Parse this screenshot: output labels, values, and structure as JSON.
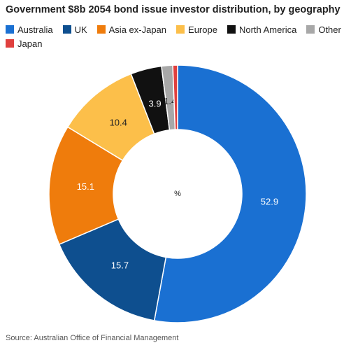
{
  "chart_data": {
    "type": "donut",
    "title": "Government $8b 2054 bond issue investor distribution, by geography",
    "categories": [
      "Australia",
      "UK",
      "Asia ex-Japan",
      "Europe",
      "North America",
      "Other",
      "Japan"
    ],
    "values": [
      52.9,
      15.7,
      15.1,
      10.4,
      3.9,
      1.4,
      0.6
    ],
    "colors": [
      "#1a70d2",
      "#0e4f8f",
      "#ef7c0c",
      "#fcbf4a",
      "#111111",
      "#a8a8a8",
      "#e0403e"
    ],
    "center_label": "%",
    "source": "Source: Australian Office of Financial Management"
  }
}
